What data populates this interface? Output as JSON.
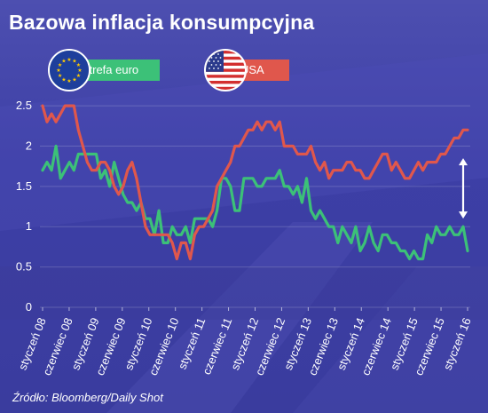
{
  "title": "Bazowa inflacja konsumpcyjna",
  "legend": {
    "eu_label": "strefa euro",
    "us_label": "USA"
  },
  "source": "Źródło: Bloomberg/Daily Shot",
  "colors": {
    "eu": "#3cc178",
    "us": "#e0574c",
    "background": "#3f41a5",
    "text": "#ffffff"
  },
  "icons": {
    "eu": "eu-flag-icon",
    "us": "us-flag-icon",
    "arrow": "double-arrow-icon"
  },
  "chart_data": {
    "type": "line",
    "title": "Bazowa inflacja konsumpcyjna",
    "xlabel": "",
    "ylabel": "",
    "ylim": [
      0,
      2.6
    ],
    "y_ticks": [
      "0",
      "0.5",
      "1",
      "1.5",
      "2",
      "2.5"
    ],
    "y_tick_values": [
      0,
      0.5,
      1,
      1.5,
      2,
      2.5
    ],
    "x_tick_labels": [
      "styczeń 08",
      "czerwiec 08",
      "styczeń 09",
      "czerwiec 09",
      "styczeń 10",
      "czerwiec 10",
      "styczeń 11",
      "czerwiec 11",
      "styczeń 12",
      "czerwiec 12",
      "styczeń 13",
      "czerwiec 13",
      "styczeń 14",
      "czerwiec 14",
      "styczeń 15",
      "czerwiec 15",
      "styczeń 16"
    ],
    "x_start": "2008-01",
    "x_end": "2016-02",
    "grid": true,
    "legend_position": "top-left",
    "annotation": "double arrow between series at latest value",
    "series": [
      {
        "name": "strefa euro",
        "color": "#3cc178",
        "values": [
          1.7,
          1.8,
          1.7,
          2.0,
          1.6,
          1.7,
          1.8,
          1.7,
          1.9,
          1.9,
          1.9,
          1.9,
          1.9,
          1.6,
          1.7,
          1.5,
          1.8,
          1.6,
          1.4,
          1.3,
          1.3,
          1.2,
          1.3,
          1.1,
          1.1,
          0.9,
          1.2,
          0.8,
          0.8,
          1.0,
          0.9,
          0.9,
          1.0,
          0.8,
          1.1,
          1.1,
          1.1,
          1.1,
          1.0,
          1.2,
          1.6,
          1.6,
          1.5,
          1.2,
          1.2,
          1.6,
          1.6,
          1.6,
          1.5,
          1.5,
          1.6,
          1.6,
          1.6,
          1.7,
          1.5,
          1.5,
          1.4,
          1.5,
          1.3,
          1.6,
          1.2,
          1.1,
          1.2,
          1.1,
          1.0,
          1.0,
          0.8,
          1.0,
          0.9,
          0.8,
          1.0,
          0.7,
          0.8,
          1.0,
          0.8,
          0.7,
          0.9,
          0.9,
          0.8,
          0.8,
          0.7,
          0.7,
          0.6,
          0.7,
          0.6,
          0.6,
          0.9,
          0.8,
          1.0,
          0.9,
          0.9,
          1.0,
          0.9,
          0.9,
          1.0,
          0.7
        ]
      },
      {
        "name": "USA",
        "color": "#e0574c",
        "values": [
          2.5,
          2.3,
          2.4,
          2.3,
          2.4,
          2.5,
          2.5,
          2.5,
          2.2,
          2.0,
          1.8,
          1.7,
          1.7,
          1.8,
          1.8,
          1.7,
          1.5,
          1.4,
          1.5,
          1.7,
          1.8,
          1.6,
          1.3,
          1.0,
          0.9,
          0.9,
          0.9,
          0.9,
          0.9,
          0.8,
          0.6,
          0.8,
          0.8,
          0.6,
          0.9,
          1.0,
          1.0,
          1.1,
          1.2,
          1.5,
          1.6,
          1.7,
          1.8,
          2.0,
          2.0,
          2.1,
          2.2,
          2.2,
          2.3,
          2.2,
          2.3,
          2.3,
          2.2,
          2.3,
          2.0,
          2.0,
          2.0,
          1.9,
          1.9,
          1.9,
          2.0,
          1.8,
          1.7,
          1.8,
          1.6,
          1.7,
          1.7,
          1.7,
          1.8,
          1.8,
          1.7,
          1.7,
          1.6,
          1.6,
          1.7,
          1.8,
          1.9,
          1.9,
          1.7,
          1.8,
          1.7,
          1.6,
          1.6,
          1.7,
          1.8,
          1.7,
          1.8,
          1.8,
          1.8,
          1.9,
          1.9,
          2.0,
          2.1,
          2.1,
          2.2,
          2.2
        ]
      }
    ]
  }
}
